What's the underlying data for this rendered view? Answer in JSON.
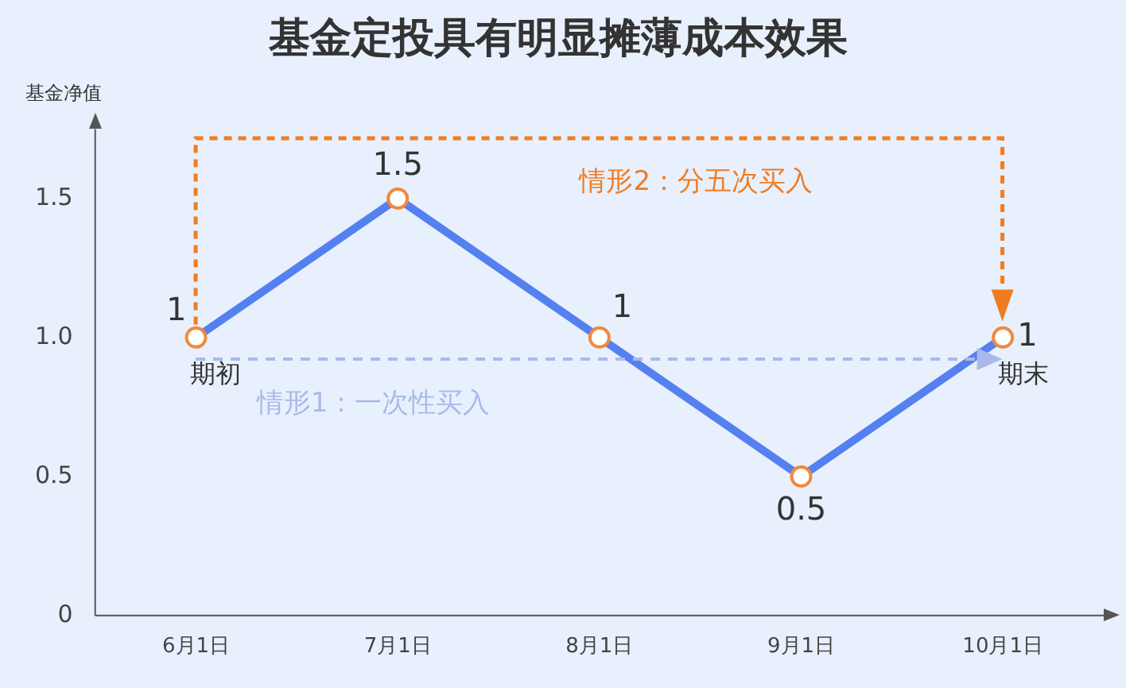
{
  "chart_data": {
    "type": "line",
    "title": "基金定投具有明显摊薄成本效果",
    "ylabel": "基金净值",
    "categories": [
      "6月1日",
      "7月1日",
      "8月1日",
      "9月1日",
      "10月1日"
    ],
    "series": [
      {
        "color": "#5580f0",
        "values": [
          1,
          1.5,
          1,
          0.5,
          1
        ]
      }
    ],
    "ylim": [
      0,
      1.75
    ],
    "yticks": [
      0,
      0.5,
      {
        "value": 1,
        "label": "1.0"
      },
      1.5
    ],
    "data_labels": true,
    "grid": false,
    "legend": false,
    "marker": "circle",
    "line_style": "solid",
    "annotations": [
      {
        "text": "期初",
        "x": "6月1日",
        "y": 1
      },
      {
        "text": "期末",
        "x": "10月1日",
        "y": 1
      },
      "情形1：一次性买入",
      "情形2：分五次买入"
    ]
  }
}
